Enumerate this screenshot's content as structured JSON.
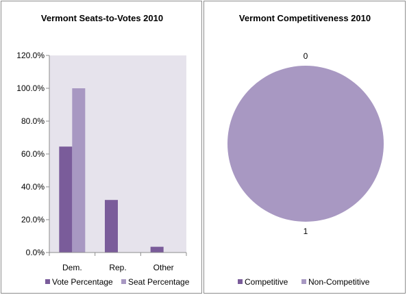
{
  "chart_data": [
    {
      "type": "bar",
      "title": "Vermont Seats-to-Votes 2010",
      "categories": [
        "Dem.",
        "Rep.",
        "Other"
      ],
      "series": [
        {
          "name": "Vote Percentage",
          "values": [
            64.5,
            32.0,
            3.5
          ],
          "color": "#7a5c9a"
        },
        {
          "name": "Seat Percentage",
          "values": [
            100.0,
            0.0,
            0.0
          ],
          "color": "#a898c2"
        }
      ],
      "ylim": [
        0,
        120
      ],
      "yticks": [
        "0.0%",
        "20.0%",
        "40.0%",
        "60.0%",
        "80.0%",
        "100.0%",
        "120.0%"
      ],
      "legend_position": "bottom",
      "plot_background": "#e6e3ec",
      "grid": false
    },
    {
      "type": "pie",
      "title": "Vermont Competitiveness 2010",
      "slices": [
        {
          "name": "Competitive",
          "value": 0,
          "label": "0",
          "color": "#7a5c9a"
        },
        {
          "name": "Non-Competitive",
          "value": 1,
          "label": "1",
          "color": "#a898c2"
        }
      ],
      "legend_position": "bottom"
    }
  ]
}
